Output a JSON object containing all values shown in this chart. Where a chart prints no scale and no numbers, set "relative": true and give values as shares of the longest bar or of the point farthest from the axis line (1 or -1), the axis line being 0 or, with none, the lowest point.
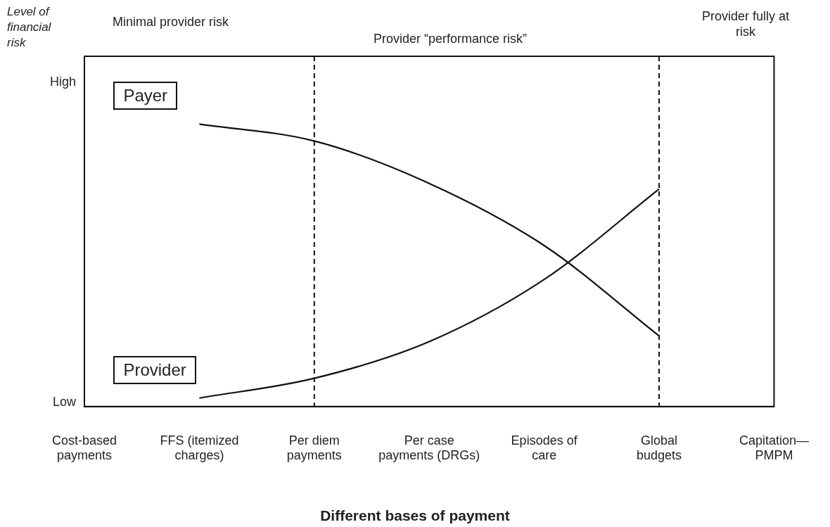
{
  "chart_data": {
    "type": "line",
    "relative": true,
    "xlabel": "Different bases of payment",
    "categories": [
      "Cost-based payments",
      "FFS (itemized charges)",
      "Per diem payments",
      "Per case payments (DRGs)",
      "Episodes of care",
      "Global budgets",
      "Capitation—PMPM"
    ],
    "series": [
      {
        "name": "Payer",
        "color": "#111111",
        "values": [
          null,
          1.0,
          0.94,
          0.79,
          0.57,
          0.25,
          null
        ]
      },
      {
        "name": "Provider",
        "color": "#111111",
        "values": [
          null,
          0.03,
          0.1,
          0.23,
          0.45,
          0.77,
          null
        ]
      }
    ],
    "ref_lines": [
      {
        "axis": "x",
        "value": "Per diem payments",
        "color": "#111111",
        "line_style": "dashed"
      },
      {
        "axis": "x",
        "value": "Global budgets",
        "color": "#111111",
        "line_style": "dashed"
      }
    ],
    "annotations": [
      "Level of financial risk",
      "High",
      "Low",
      "Minimal provider risk",
      "Provider “performance risk”",
      "Provider fully at risk"
    ],
    "grid": false,
    "legend": false,
    "marker": "none",
    "line_style": "solid"
  }
}
